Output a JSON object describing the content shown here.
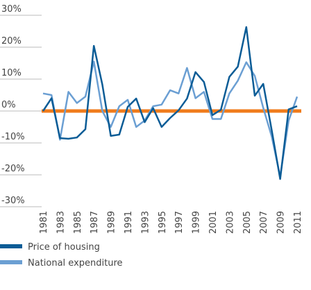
{
  "chart_data": {
    "type": "line",
    "categories": [
      "1981",
      null,
      "1983",
      null,
      "1985",
      null,
      "1987",
      null,
      "1989",
      null,
      "1991",
      null,
      "1993",
      null,
      "1995",
      null,
      "1997",
      null,
      "1999",
      null,
      "2001",
      null,
      "2003",
      null,
      "2005",
      null,
      "2007",
      null,
      "2009",
      null,
      "2011"
    ],
    "series": [
      {
        "name": "Price of housing",
        "color": "#0b5c96",
        "values": [
          0,
          4,
          -8.5,
          -8.7,
          -8.3,
          -5.7,
          20.4,
          8.3,
          -7.8,
          -7.4,
          1.3,
          3.9,
          -3.5,
          0.9,
          -5,
          -2.2,
          0.2,
          3.9,
          12.2,
          9.1,
          -1.3,
          0.4,
          10.7,
          13.9,
          26.3,
          4.8,
          8.5,
          -6,
          -21.3,
          0.5,
          1.5
        ]
      },
      {
        "name": "National expenditure",
        "color": "#6b9fd3",
        "values": [
          5.5,
          5,
          -9,
          6,
          2.5,
          4.5,
          15.5,
          0,
          -5,
          1.5,
          3.5,
          -5,
          -3,
          1.5,
          2,
          6.5,
          5.5,
          13.5,
          4,
          6,
          -2.5,
          -2.5,
          5.5,
          9.5,
          15.3,
          11,
          1,
          -8,
          -20.5,
          -3,
          4.5
        ]
      }
    ],
    "ylim": [
      -30,
      30
    ],
    "yticks": [
      {
        "value": 30,
        "label": "30%"
      },
      {
        "value": 20,
        "label": "20%"
      },
      {
        "value": 10,
        "label": "10%"
      },
      {
        "value": 0,
        "label": "0%"
      },
      {
        "value": -10,
        "label": "-10%"
      },
      {
        "value": -20,
        "label": "-20%"
      },
      {
        "value": -30,
        "label": "-30%"
      }
    ],
    "zero_line_color": "#f07c1c",
    "grid": true
  }
}
